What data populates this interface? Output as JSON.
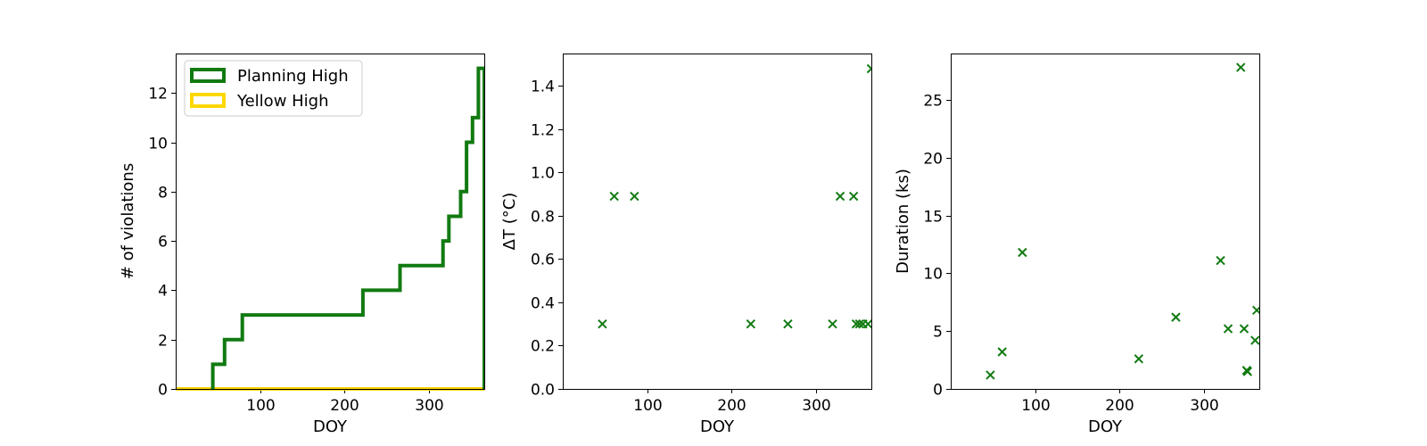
{
  "chart_data": [
    {
      "type": "line",
      "step": true,
      "xlabel": "DOY",
      "ylabel": "# of violations",
      "xlim": [
        0,
        366
      ],
      "ylim": [
        0,
        13.6
      ],
      "xticks": [
        100,
        200,
        300
      ],
      "yticks": [
        0,
        2,
        4,
        6,
        8,
        10,
        12
      ],
      "legend_position": "top-left",
      "series": [
        {
          "name": "Planning High",
          "color": "#117a11",
          "points": [
            [
              44,
              0
            ],
            [
              44,
              1
            ],
            [
              58,
              1
            ],
            [
              58,
              2
            ],
            [
              79,
              2
            ],
            [
              79,
              3
            ],
            [
              222,
              3
            ],
            [
              222,
              4
            ],
            [
              266,
              4
            ],
            [
              266,
              5
            ],
            [
              317,
              5
            ],
            [
              317,
              6
            ],
            [
              324,
              6
            ],
            [
              324,
              7
            ],
            [
              338,
              7
            ],
            [
              338,
              8
            ],
            [
              345,
              8
            ],
            [
              345,
              10
            ],
            [
              352,
              10
            ],
            [
              352,
              11
            ],
            [
              359,
              11
            ],
            [
              359,
              13
            ],
            [
              366,
              13
            ],
            [
              366,
              0
            ]
          ]
        },
        {
          "name": "Yellow High",
          "color": "#ffd700",
          "points": [
            [
              0,
              0
            ],
            [
              366,
              0
            ]
          ]
        }
      ]
    },
    {
      "type": "scatter",
      "xlabel": "DOY",
      "ylabel": "ΔT (°C)",
      "xlim": [
        0,
        366
      ],
      "ylim": [
        0,
        1.55
      ],
      "xticks": [
        100,
        200,
        300
      ],
      "yticks": [
        0.0,
        0.2,
        0.4,
        0.6,
        0.8,
        1.0,
        1.2,
        1.4
      ],
      "color": "#117a11",
      "x": [
        47,
        61,
        85,
        223,
        267,
        320,
        329,
        345,
        348,
        352,
        356,
        362,
        366
      ],
      "y": [
        0.3,
        0.89,
        0.89,
        0.3,
        0.3,
        0.3,
        0.89,
        0.89,
        0.3,
        0.3,
        0.3,
        0.3,
        1.48
      ]
    },
    {
      "type": "scatter",
      "xlabel": "DOY",
      "ylabel": "Duration (ks)",
      "xlim": [
        0,
        366
      ],
      "ylim": [
        0,
        29
      ],
      "xticks": [
        100,
        200,
        300
      ],
      "yticks": [
        0,
        5,
        10,
        15,
        20,
        25
      ],
      "color": "#117a11",
      "x": [
        47,
        61,
        85,
        223,
        267,
        320,
        329,
        344,
        348,
        351,
        352,
        361,
        363
      ],
      "y": [
        1.2,
        3.2,
        11.8,
        2.6,
        6.2,
        11.1,
        5.2,
        27.8,
        5.2,
        1.6,
        1.5,
        4.2,
        6.8
      ]
    }
  ]
}
